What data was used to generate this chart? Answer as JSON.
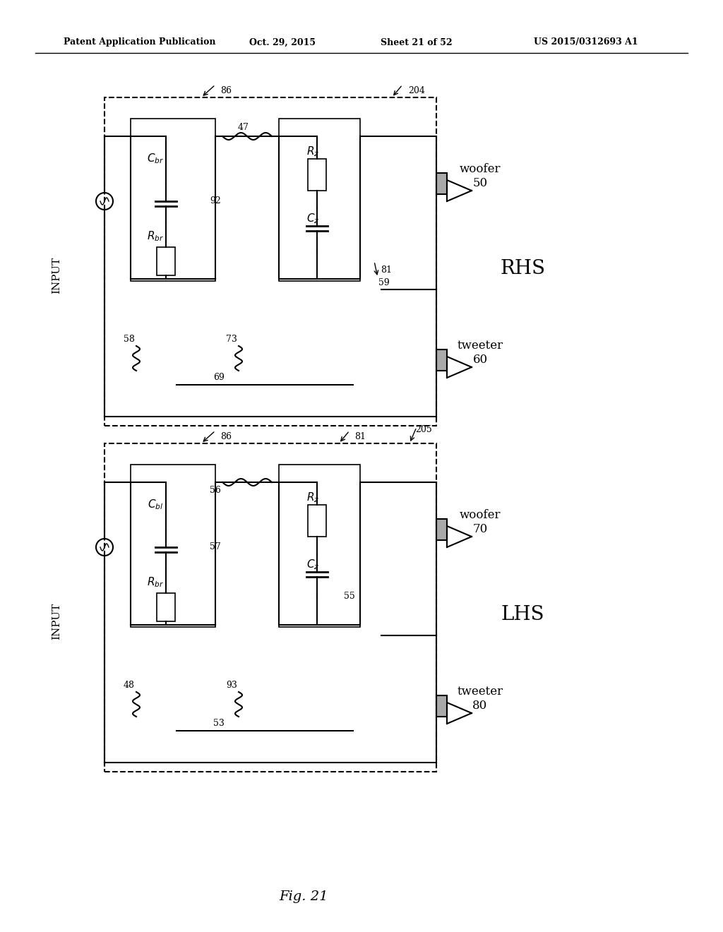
{
  "bg_color": "#ffffff",
  "header_text": "Patent Application Publication",
  "header_date": "Oct. 29, 2015",
  "header_sheet": "Sheet 21 of 52",
  "header_patent": "US 2015/0312693 A1",
  "fig_label": "Fig. 21",
  "diagram1": {
    "label_86": "86",
    "label_204": "204",
    "label_47": "47",
    "label_92": "92",
    "label_Cbr": "C_br",
    "label_Rbr": "R_br",
    "label_Rz": "R_z",
    "label_Cz": "C_z",
    "label_81": "81",
    "label_59": "59",
    "label_58": "58",
    "label_73": "73",
    "label_69": "69",
    "label_woofer": "woofer",
    "label_woofer_num": "50",
    "label_tweeter": "tweeter",
    "label_tweeter_num": "60",
    "label_RHS": "RHS",
    "label_INPUT": "INPUT"
  },
  "diagram2": {
    "label_86": "86",
    "label_81": "81",
    "label_205": "205",
    "label_56": "56",
    "label_57": "57",
    "label_Cbl": "C_bl",
    "label_Rbr": "R_br",
    "label_Rz": "R_z",
    "label_Cz": "C_z",
    "label_55": "55",
    "label_48": "48",
    "label_93": "93",
    "label_53": "53",
    "label_woofer": "woofer",
    "label_woofer_num": "70",
    "label_tweeter": "tweeter",
    "label_tweeter_num": "80",
    "label_LHS": "LHS",
    "label_INPUT": "INPUT"
  }
}
